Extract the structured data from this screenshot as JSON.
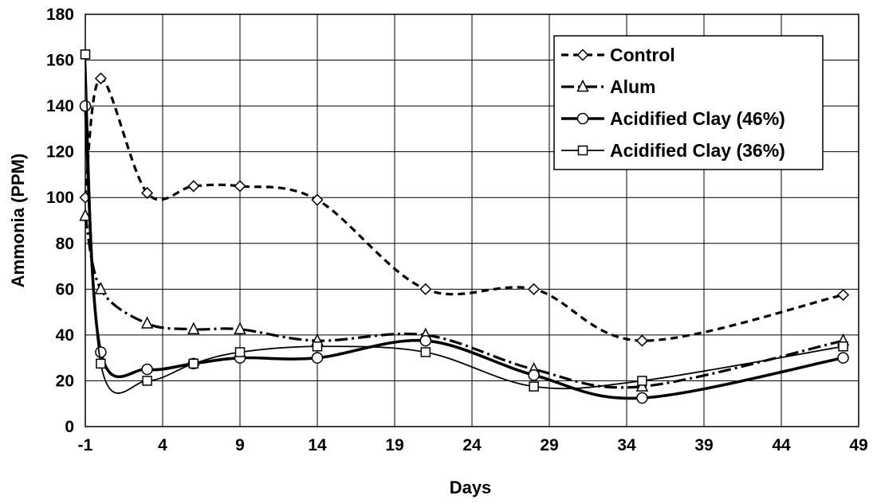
{
  "chart_data": {
    "type": "line",
    "title": "",
    "xlabel": "Days",
    "ylabel": "Ammonia (PPM)",
    "xlim": [
      -1,
      49
    ],
    "ylim": [
      0,
      180
    ],
    "xticks": [
      -1,
      4,
      9,
      14,
      19,
      24,
      29,
      34,
      39,
      44,
      49
    ],
    "yticks": [
      0,
      20,
      40,
      60,
      80,
      100,
      120,
      140,
      160,
      180
    ],
    "grid": true,
    "legend_position": "top-right",
    "series": [
      {
        "name": "Control",
        "marker": "diamond",
        "line_style": "dashed",
        "x": [
          -1,
          0,
          3,
          6,
          9,
          14,
          21,
          28,
          35,
          48
        ],
        "y": [
          100,
          152,
          102,
          105,
          105,
          99,
          60,
          60,
          37.5,
          57.5
        ]
      },
      {
        "name": "Alum",
        "marker": "triangle",
        "line_style": "dash-dot",
        "x": [
          -1,
          0,
          3,
          6,
          9,
          14,
          21,
          28,
          35,
          48
        ],
        "y": [
          92,
          60,
          45,
          42.5,
          42.5,
          37.5,
          40,
          25,
          17.5,
          37.5
        ]
      },
      {
        "name": "Acidified Clay (46%)",
        "marker": "circle",
        "line_style": "solid-thick",
        "x": [
          -1,
          0,
          3,
          6,
          9,
          14,
          21,
          28,
          35,
          48
        ],
        "y": [
          140,
          32.5,
          25,
          27.5,
          30,
          30,
          37.5,
          22.5,
          12.5,
          30
        ]
      },
      {
        "name": "Acidified Clay (36%)",
        "marker": "square",
        "line_style": "solid-thin",
        "x": [
          -1,
          0,
          3,
          6,
          9,
          14,
          21,
          28,
          35,
          48
        ],
        "y": [
          162.5,
          27.5,
          20,
          27.5,
          32.5,
          35,
          32.5,
          17.5,
          20,
          35
        ]
      }
    ]
  }
}
